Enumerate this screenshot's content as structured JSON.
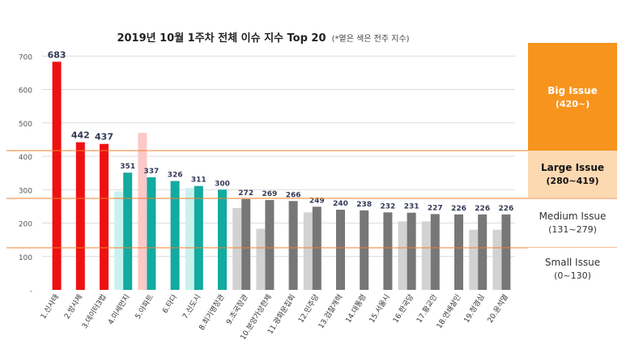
{
  "chart_data": {
    "type": "bar",
    "title": "2019년 10월 1주차 전체 이슈 지수 Top 20",
    "subtitle": "(*옅은 색은 전주 지수)",
    "xlabel": "",
    "ylabel": "",
    "ylim": [
      0,
      700
    ],
    "yticks": [
      "-",
      "100",
      "200",
      "300",
      "400",
      "500",
      "600",
      "700"
    ],
    "grid": true,
    "categories": [
      "1.신사태",
      "2.방사제",
      "3.데이터3법",
      "4.미세먼지",
      "5.아파트",
      "6.타다",
      "7.신도시",
      "8.최기영장관",
      "9.조국장관",
      "10.분양가상한제",
      "11.광화문집회",
      "12.민주당",
      "13.검찰개혁",
      "14.대통령",
      "15.서울시",
      "16.한국당",
      "17.황교안",
      "18.연쇄살인",
      "19.정경심",
      "20.윤석열"
    ],
    "series": [
      {
        "role": "previous_week",
        "values": [
          null,
          null,
          null,
          295,
          470,
          null,
          305,
          null,
          245,
          183,
          null,
          232,
          null,
          null,
          null,
          205,
          205,
          null,
          180,
          180
        ]
      },
      {
        "role": "current_week",
        "values": [
          683,
          442,
          437,
          351,
          337,
          326,
          311,
          300,
          272,
          269,
          266,
          249,
          240,
          238,
          232,
          231,
          227,
          226,
          226,
          226
        ]
      }
    ],
    "bar_colors": [
      "#ee1111",
      "#ee1111",
      "#ee1111",
      "#13aaa0",
      "#13aaa0",
      "#13aaa0",
      "#13aaa0",
      "#13aaa0",
      "#777777",
      "#777777",
      "#777777",
      "#777777",
      "#777777",
      "#777777",
      "#777777",
      "#777777",
      "#777777",
      "#777777",
      "#777777",
      "#777777"
    ],
    "prev_colors": [
      "#f7b0b0",
      "#f7b0b0",
      "#f7b0b0",
      "#c9f2ee",
      "#fcc8c8",
      "#c9f2ee",
      "#c9f2ee",
      "#c9f2ee",
      "#d2d2d2",
      "#d2d2d2",
      "#d2d2d2",
      "#d2d2d2",
      "#d2d2d2",
      "#d2d2d2",
      "#d2d2d2",
      "#d2d2d2",
      "#d2d2d2",
      "#d2d2d2",
      "#d2d2d2",
      "#d2d2d2"
    ],
    "threshold_lines": [
      420,
      280,
      131
    ],
    "threshold_color": "#f08030"
  },
  "legend_bands": {
    "big": {
      "name": "Big Issue",
      "range": "(420~)"
    },
    "large": {
      "name": "Large Issue",
      "range": "(280~419)"
    },
    "medium": {
      "name": "Medium Issue",
      "range": "(131~279)"
    },
    "small": {
      "name": "Small Issue",
      "range": "(0~130)"
    }
  }
}
